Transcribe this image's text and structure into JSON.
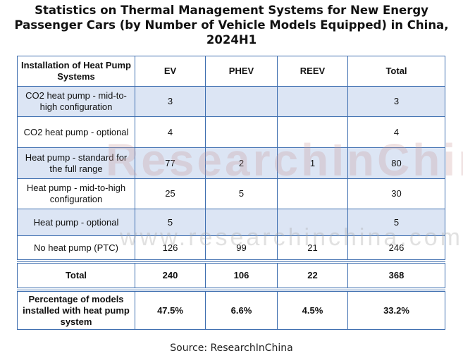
{
  "title_lines": [
    "Statistics on Thermal Management Systems for New Energy",
    "Passenger Cars (by Number of Vehicle Models Equipped) in China,",
    "2024H1"
  ],
  "table": {
    "headers": [
      "Installation of Heat Pump Systems",
      "EV",
      "PHEV",
      "REEV",
      "Total"
    ],
    "rows": [
      [
        "CO2 heat pump - mid-to-high configuration",
        "3",
        "",
        "",
        "3"
      ],
      [
        "CO2 heat pump - optional",
        "4",
        "",
        "",
        "4"
      ],
      [
        "Heat pump - standard for the full range",
        "77",
        "2",
        "1",
        "80"
      ],
      [
        "Heat pump - mid-to-high configuration",
        "25",
        "5",
        "",
        "30"
      ],
      [
        "Heat pump - optional",
        "5",
        "",
        "",
        "5"
      ],
      [
        "No heat pump (PTC)",
        "126",
        "99",
        "21",
        "246"
      ]
    ],
    "total_row": [
      "Total",
      "240",
      "106",
      "22",
      "368"
    ],
    "percentage_row": [
      "Percentage of models installed with heat pump system",
      "47.5%",
      "6.6%",
      "4.5%",
      "33.2%"
    ]
  },
  "watermark": {
    "brand": "ResearchInChina",
    "url": "www.researchinchina.com"
  },
  "source": "Source: ResearchInChina"
}
